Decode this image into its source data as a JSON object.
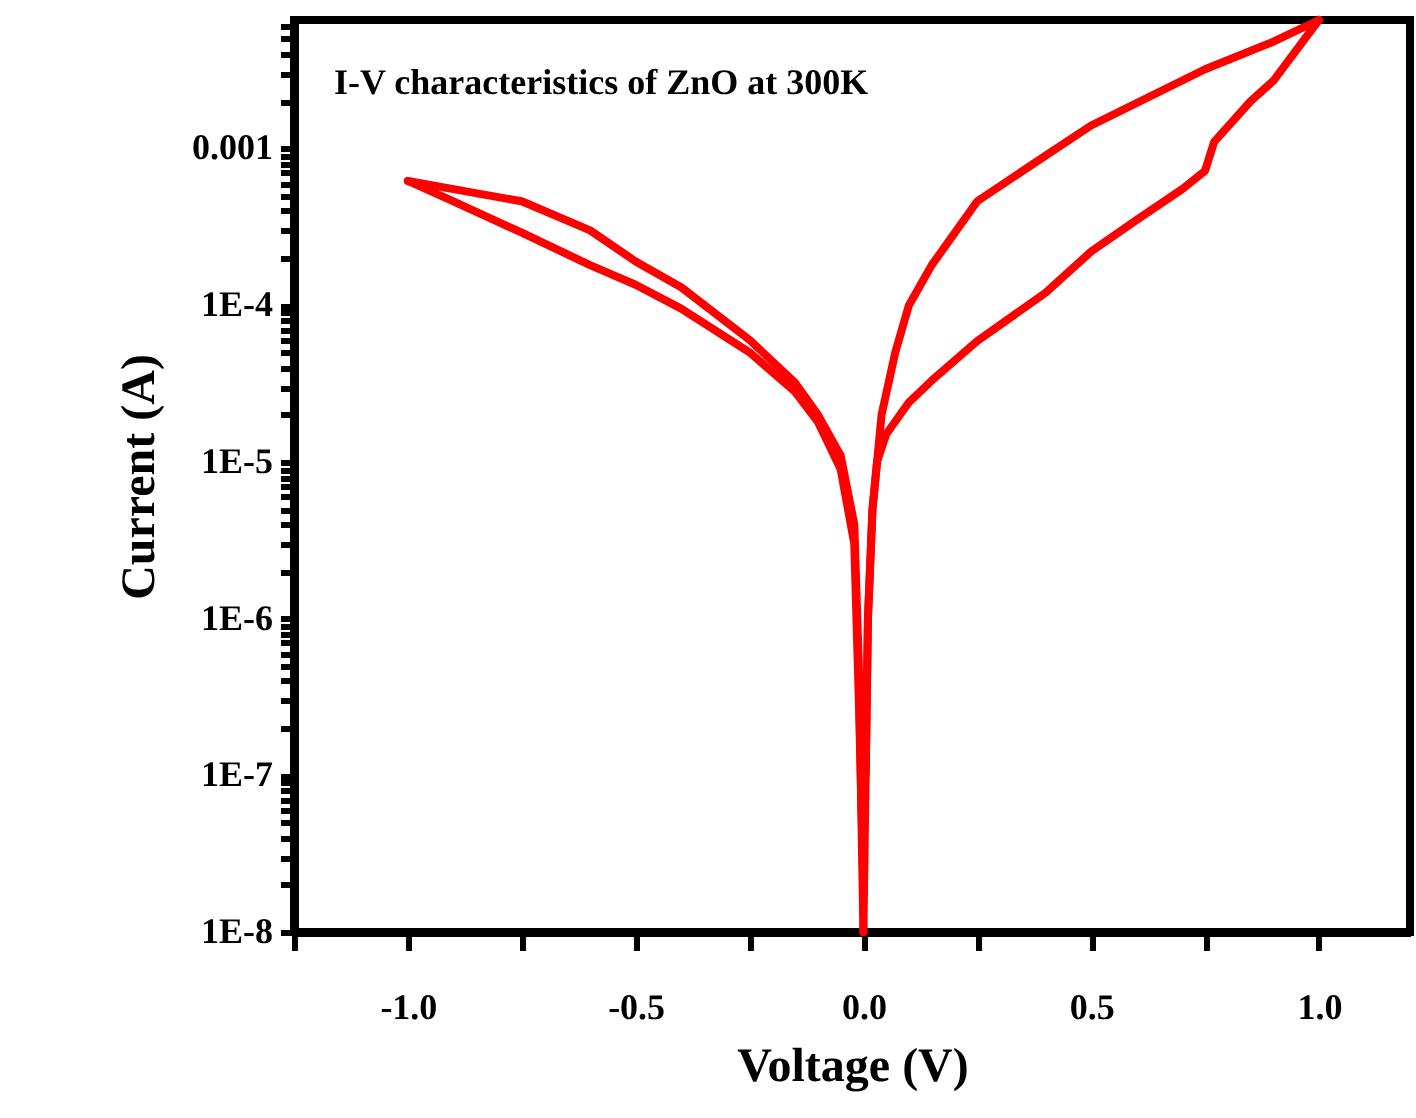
{
  "chart_data": {
    "type": "line",
    "title": "I-V characteristics of ZnO at 300K",
    "xlabel": "Voltage (V)",
    "ylabel": "Current (A)",
    "log": "y",
    "series": [
      {
        "color": "#ff0000",
        "x": [
          0,
          0.01,
          0.02,
          0.03,
          0.05,
          0.1,
          0.15,
          0.25,
          0.4,
          0.5,
          0.6,
          0.7,
          0.75,
          0.77,
          0.85,
          0.9,
          1.0
        ],
        "values": [
          1e-08,
          1e-06,
          5e-06,
          1e-05,
          1.5e-05,
          2.4e-05,
          3.3e-05,
          5.9e-05,
          0.00012,
          0.00022,
          0.00035,
          0.00055,
          0.00072,
          0.0011,
          0.002,
          0.0027,
          0.0066
        ]
      },
      {
        "color": "#ff0000",
        "x": [
          0.005,
          0.01,
          0.02,
          0.04,
          0.07,
          0.1,
          0.15,
          0.25,
          0.4,
          0.5,
          0.65,
          0.75,
          0.9,
          1.0
        ],
        "values": [
          1e-07,
          1e-06,
          5e-06,
          2e-05,
          5e-05,
          0.0001,
          0.00018,
          0.00046,
          0.0009,
          0.0014,
          0.0023,
          0.0032,
          0.0048,
          0.0066
        ]
      },
      {
        "color": "#ff0000",
        "x": [
          -1.0,
          -0.9,
          -0.75,
          -0.6,
          -0.5,
          -0.4,
          -0.25,
          -0.15,
          -0.1,
          -0.05,
          -0.02,
          -0.01,
          0
        ],
        "values": [
          0.00062,
          0.00055,
          0.00046,
          0.0003,
          0.00019,
          0.00013,
          6e-05,
          3.2e-05,
          2e-05,
          1.1e-05,
          4e-06,
          5e-07,
          1e-08
        ]
      },
      {
        "color": "#ff0000",
        "x": [
          -1.0,
          -0.9,
          -0.75,
          -0.6,
          -0.5,
          -0.4,
          -0.25,
          -0.15,
          -0.1,
          -0.05,
          -0.02,
          -0.01,
          0
        ],
        "values": [
          0.00062,
          0.00046,
          0.00029,
          0.00018,
          0.000135,
          9.5e-05,
          5e-05,
          2.8e-05,
          1.8e-05,
          9e-06,
          3e-06,
          3e-07,
          2e-08
        ]
      }
    ],
    "xlim": [
      -1.25,
      1.2
    ],
    "xticks": [
      {
        "value": -1.25,
        "label": null
      },
      {
        "value": -1.0,
        "label": "-1.0"
      },
      {
        "value": -0.75,
        "label": null
      },
      {
        "value": -0.5,
        "label": "-0.5"
      },
      {
        "value": -0.25,
        "label": null
      },
      {
        "value": 0,
        "label": "0.0"
      },
      {
        "value": 0.25,
        "label": null
      },
      {
        "value": 0.5,
        "label": "0.5"
      },
      {
        "value": 0.75,
        "label": null
      },
      {
        "value": 1.0,
        "label": "1.0"
      }
    ],
    "ylim": [
      1e-08,
      0.0066
    ],
    "yticks": [
      {
        "value": 1e-08,
        "label": "1E-8"
      },
      {
        "value": 2e-08,
        "label": null
      },
      {
        "value": 3e-08,
        "label": null
      },
      {
        "value": 4e-08,
        "label": null
      },
      {
        "value": 5e-08,
        "label": null
      },
      {
        "value": 6e-08,
        "label": null
      },
      {
        "value": 7e-08,
        "label": null
      },
      {
        "value": 8e-08,
        "label": null
      },
      {
        "value": 9e-08,
        "label": null
      },
      {
        "value": 1e-07,
        "label": "1E-7"
      },
      {
        "value": 2e-07,
        "label": null
      },
      {
        "value": 3e-07,
        "label": null
      },
      {
        "value": 4e-07,
        "label": null
      },
      {
        "value": 5e-07,
        "label": null
      },
      {
        "value": 6e-07,
        "label": null
      },
      {
        "value": 7e-07,
        "label": null
      },
      {
        "value": 8e-07,
        "label": null
      },
      {
        "value": 9e-07,
        "label": null
      },
      {
        "value": 1e-06,
        "label": "1E-6"
      },
      {
        "value": 2e-06,
        "label": null
      },
      {
        "value": 3e-06,
        "label": null
      },
      {
        "value": 4e-06,
        "label": null
      },
      {
        "value": 5e-06,
        "label": null
      },
      {
        "value": 6e-06,
        "label": null
      },
      {
        "value": 7e-06,
        "label": null
      },
      {
        "value": 8e-06,
        "label": null
      },
      {
        "value": 9e-06,
        "label": null
      },
      {
        "value": 1e-05,
        "label": "1E-5"
      },
      {
        "value": 2e-05,
        "label": null
      },
      {
        "value": 3e-05,
        "label": null
      },
      {
        "value": 4e-05,
        "label": null
      },
      {
        "value": 5e-05,
        "label": null
      },
      {
        "value": 6e-05,
        "label": null
      },
      {
        "value": 7e-05,
        "label": null
      },
      {
        "value": 8e-05,
        "label": null
      },
      {
        "value": 9e-05,
        "label": null
      },
      {
        "value": 0.0001,
        "label": "1E-4"
      },
      {
        "value": 0.0002,
        "label": null
      },
      {
        "value": 0.0003,
        "label": null
      },
      {
        "value": 0.0004,
        "label": null
      },
      {
        "value": 0.0005,
        "label": null
      },
      {
        "value": 0.0006,
        "label": null
      },
      {
        "value": 0.0007,
        "label": null
      },
      {
        "value": 0.0008,
        "label": null
      },
      {
        "value": 0.0009,
        "label": null
      },
      {
        "value": 0.001,
        "label": "0.001"
      },
      {
        "value": 0.002,
        "label": null
      },
      {
        "value": 0.003,
        "label": null
      },
      {
        "value": 0.004,
        "label": null
      },
      {
        "value": 0.005,
        "label": null
      },
      {
        "value": 0.006,
        "label": null
      }
    ],
    "grid": false,
    "marker": "none",
    "line_style": "solid"
  }
}
